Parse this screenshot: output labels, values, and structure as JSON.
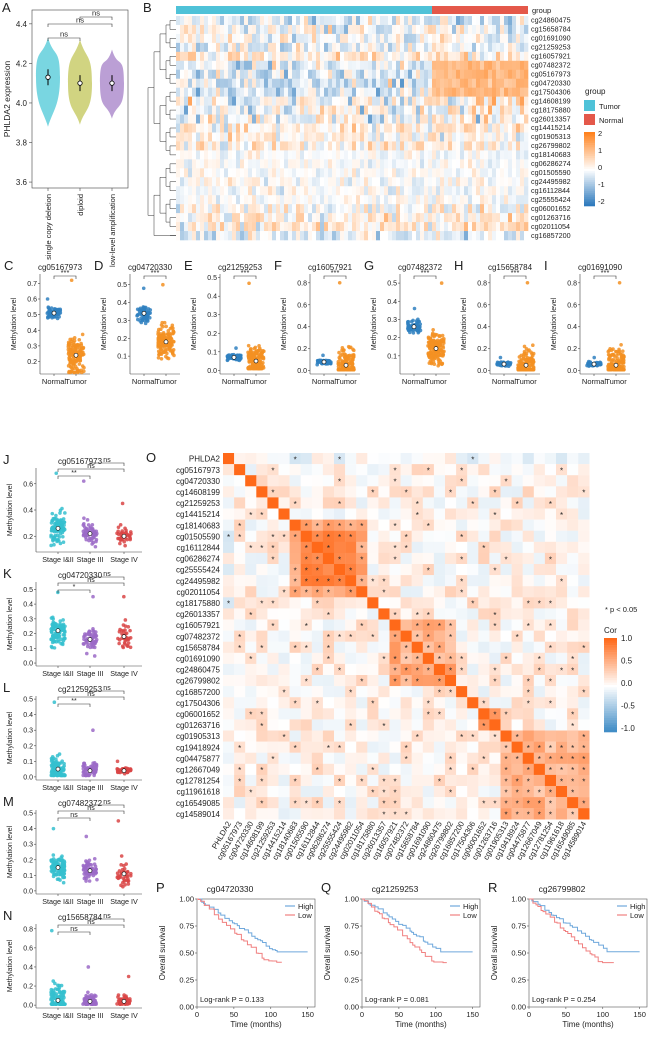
{
  "panels": {
    "A": {
      "letter": "A",
      "ylabel": "PHLDA2 expression",
      "yticks": [
        3.6,
        3.8,
        4.0,
        4.2,
        4.4
      ],
      "ylim": [
        3.57,
        4.47
      ],
      "groups": [
        {
          "name": "single copy deletion",
          "color": "#72d4df",
          "mean": 4.13,
          "lo": 3.88,
          "hi": 4.33
        },
        {
          "name": "diploid",
          "color": "#cfd27a",
          "mean": 4.1,
          "lo": 3.89,
          "hi": 4.32
        },
        {
          "name": "low-level amplification",
          "color": "#b79ad3",
          "mean": 4.1,
          "lo": 3.92,
          "hi": 4.27
        }
      ],
      "sig": [
        "ns",
        "ns",
        "ns"
      ]
    },
    "B": {
      "letter": "B",
      "group_label": "group",
      "legend_title": "group",
      "legend_items": [
        {
          "label": "Tumor",
          "color": "#4fc2d8"
        },
        {
          "label": "Normal",
          "color": "#e4584a"
        }
      ],
      "colorbar_ticks": [
        "2",
        "1",
        "0",
        "-1",
        "-2"
      ],
      "rows": [
        "cg24860475",
        "cg15658784",
        "cg01691090",
        "cg21259253",
        "cg16057921",
        "cg07482372",
        "cg05167973",
        "cg04720330",
        "cg17504306",
        "cg14608199",
        "cg18175880",
        "cg26013357",
        "cg14415214",
        "cg01905313",
        "cg26799802",
        "cg18140683",
        "cg06286274",
        "cg01505590",
        "cg24495982",
        "cg16112844",
        "cg25555424",
        "cg06001652",
        "cg01263716",
        "cg02011054",
        "cg16857200"
      ]
    },
    "C_I": [
      {
        "letter": "C",
        "title": "cg05167973",
        "ylabel": "Methylation level",
        "yticks": [
          0.2,
          0.3,
          0.4,
          0.5,
          0.6,
          0.7
        ],
        "ylim": [
          0.12,
          0.76
        ],
        "normal_median": 0.51,
        "tumor_median": 0.24,
        "normal_range": [
          0.43,
          0.6
        ],
        "tumor_range": [
          0.13,
          0.72
        ],
        "sig": "***",
        "categories": [
          "Normal",
          "Tumor"
        ]
      },
      {
        "letter": "D",
        "title": "cg04720330",
        "ylabel": "Methylation level",
        "yticks": [
          0.1,
          0.2,
          0.3,
          0.4,
          0.5
        ],
        "ylim": [
          0.0,
          0.56
        ],
        "normal_median": 0.34,
        "tumor_median": 0.18,
        "normal_range": [
          0.22,
          0.48
        ],
        "tumor_range": [
          0.03,
          0.5
        ],
        "sig": "***",
        "categories": [
          "Normal",
          "Tumor"
        ]
      },
      {
        "letter": "E",
        "title": "cg21259253",
        "ylabel": "Methylation level",
        "yticks": [
          0.0,
          0.1,
          0.2,
          0.3,
          0.4,
          0.5
        ],
        "ylim": [
          -0.02,
          0.52
        ],
        "normal_median": 0.07,
        "tumor_median": 0.05,
        "normal_range": [
          0.03,
          0.12
        ],
        "tumor_range": [
          0.01,
          0.47
        ],
        "sig": "***",
        "categories": [
          "Normal",
          "Tumor"
        ]
      },
      {
        "letter": "F",
        "title": "cg16057921",
        "ylabel": "Methylation level",
        "yticks": [
          0.0,
          0.2,
          0.4,
          0.6,
          0.8
        ],
        "ylim": [
          -0.03,
          0.88
        ],
        "normal_median": 0.08,
        "tumor_median": 0.05,
        "normal_range": [
          0.04,
          0.14
        ],
        "tumor_range": [
          0.01,
          0.8
        ],
        "sig": "***",
        "categories": [
          "Normal",
          "Tumor"
        ]
      },
      {
        "letter": "G",
        "title": "cg07482372",
        "ylabel": "Methylation level",
        "yticks": [
          0.1,
          0.2,
          0.3,
          0.4,
          0.5
        ],
        "ylim": [
          0.0,
          0.55
        ],
        "normal_median": 0.26,
        "tumor_median": 0.14,
        "normal_range": [
          0.18,
          0.36
        ],
        "tumor_range": [
          0.02,
          0.5
        ],
        "sig": "***",
        "categories": [
          "Normal",
          "Tumor"
        ]
      },
      {
        "letter": "H",
        "title": "cg15658784",
        "ylabel": "Methylation level",
        "yticks": [
          0.0,
          0.2,
          0.4,
          0.6,
          0.8
        ],
        "ylim": [
          -0.03,
          0.88
        ],
        "normal_median": 0.06,
        "tumor_median": 0.05,
        "normal_range": [
          0.03,
          0.12
        ],
        "tumor_range": [
          0.01,
          0.8
        ],
        "sig": "***",
        "categories": [
          "Normal",
          "Tumor"
        ]
      },
      {
        "letter": "I",
        "title": "cg01691090",
        "ylabel": "Methylation level",
        "yticks": [
          0.0,
          0.2,
          0.4,
          0.6,
          0.8
        ],
        "ylim": [
          -0.03,
          0.88
        ],
        "normal_median": 0.06,
        "tumor_median": 0.05,
        "normal_range": [
          0.03,
          0.12
        ],
        "tumor_range": [
          0.01,
          0.8
        ],
        "sig": "***",
        "categories": [
          "Normal",
          "Tumor"
        ]
      }
    ],
    "J_N": [
      {
        "letter": "J",
        "title": "cg05167973",
        "ylabel": "Methylation level",
        "yticks": [
          0.2,
          0.4,
          0.6
        ],
        "ylim": [
          0.08,
          0.72
        ],
        "medians": [
          0.26,
          0.22,
          0.2
        ],
        "ranges": [
          [
            0.12,
            0.68
          ],
          [
            0.12,
            0.62
          ],
          [
            0.12,
            0.45
          ]
        ],
        "sig": [
          "**",
          "ns",
          "ns"
        ]
      },
      {
        "letter": "K",
        "title": "cg04720330",
        "ylabel": "Methylation level",
        "yticks": [
          0.0,
          0.1,
          0.2,
          0.3,
          0.4,
          0.5
        ],
        "ylim": [
          -0.02,
          0.55
        ],
        "medians": [
          0.22,
          0.16,
          0.18
        ],
        "ranges": [
          [
            0.03,
            0.48
          ],
          [
            0.03,
            0.45
          ],
          [
            0.03,
            0.45
          ]
        ],
        "sig": [
          "*",
          "ns",
          "ns"
        ]
      },
      {
        "letter": "L",
        "title": "cg21259253",
        "ylabel": "Methylation level",
        "yticks": [
          0.0,
          0.1,
          0.2,
          0.3,
          0.4,
          0.5
        ],
        "ylim": [
          -0.02,
          0.52
        ],
        "medians": [
          0.05,
          0.04,
          0.04
        ],
        "ranges": [
          [
            0.01,
            0.48
          ],
          [
            0.01,
            0.3
          ],
          [
            0.01,
            0.1
          ]
        ],
        "sig": [
          "**",
          "ns",
          "ns"
        ]
      },
      {
        "letter": "M",
        "title": "cg07482372",
        "ylabel": "Methylation level",
        "yticks": [
          0.0,
          0.1,
          0.2,
          0.3,
          0.4,
          0.5
        ],
        "ylim": [
          -0.02,
          0.52
        ],
        "medians": [
          0.15,
          0.13,
          0.11
        ],
        "ranges": [
          [
            0.02,
            0.4
          ],
          [
            0.02,
            0.35
          ],
          [
            0.02,
            0.45
          ]
        ],
        "sig": [
          "ns",
          "ns",
          "ns"
        ]
      },
      {
        "letter": "N",
        "title": "cg15658784",
        "ylabel": "Methylation level",
        "yticks": [
          0.0,
          0.2,
          0.4,
          0.6,
          0.8
        ],
        "ylim": [
          -0.03,
          0.85
        ],
        "medians": [
          0.05,
          0.04,
          0.04
        ],
        "ranges": [
          [
            0.01,
            0.78
          ],
          [
            0.01,
            0.4
          ],
          [
            0.01,
            0.3
          ]
        ],
        "sig": [
          "ns",
          "ns",
          "ns"
        ]
      }
    ],
    "stage_categories": [
      "Stage I&II",
      "Stage III",
      "Stage IV"
    ],
    "stage_colors": [
      "#35bfcf",
      "#9b6ac7",
      "#d94545"
    ],
    "O": {
      "letter": "O",
      "labels": [
        "PHLDA2",
        "cg05167973",
        "cg04720330",
        "cg14608199",
        "cg21259253",
        "cg14415214",
        "cg18140683",
        "cg01505590",
        "cg16112844",
        "cg06286274",
        "cg25555424",
        "cg24495982",
        "cg02011054",
        "cg18175880",
        "cg26013357",
        "cg16057921",
        "cg07482372",
        "cg15658784",
        "cg01691090",
        "cg24860475",
        "cg26799802",
        "cg16857200",
        "cg17504306",
        "cg06001652",
        "cg01263716",
        "cg01905313",
        "cg19418924",
        "cg04475877",
        "cg12667049",
        "cg12781254",
        "cg11961618",
        "cg16549085",
        "cg14589014"
      ],
      "legend_note": "* p < 0.05",
      "legend_title": "Cor",
      "legend_ticks": [
        "1.0",
        "0.5",
        "0.0",
        "-0.5",
        "-1.0"
      ]
    },
    "survival": [
      {
        "letter": "P",
        "title": "cg04720330",
        "pvalue_label": "Log-rank",
        "pvalue": "P = 0.133"
      },
      {
        "letter": "Q",
        "title": "cg21259253",
        "pvalue_label": "Log-rank",
        "pvalue": "P = 0.081"
      },
      {
        "letter": "R",
        "title": "cg26799802",
        "pvalue_label": "Log-rank",
        "pvalue": "P = 0.254"
      }
    ],
    "survival_common": {
      "ylabel": "Overall survival",
      "xlabel": "Time (months)",
      "xticks": [
        0,
        50,
        100,
        150
      ],
      "yticks": [
        "0.00",
        "0.25",
        "0.50",
        "0.75",
        "1.00"
      ],
      "legend": [
        {
          "label": "High",
          "color": "#6fa8dc"
        },
        {
          "label": "Low",
          "color": "#f08080"
        }
      ]
    }
  },
  "chart_data": [
    {
      "type": "violin",
      "title": "",
      "ylabel": "PHLDA2 expression",
      "categories": [
        "single copy deletion",
        "diploid",
        "low-level amplification"
      ],
      "values": [
        4.13,
        4.1,
        4.1
      ],
      "ylim": [
        3.57,
        4.47
      ]
    },
    {
      "type": "heatmap",
      "title": "",
      "rows": [
        "cg24860475",
        "cg15658784",
        "cg01691090",
        "cg21259253",
        "cg16057921",
        "cg07482372",
        "cg05167973",
        "cg04720330",
        "cg17504306",
        "cg14608199",
        "cg18175880",
        "cg26013357",
        "cg14415214",
        "cg01905313",
        "cg26799802",
        "cg18140683",
        "cg06286274",
        "cg01505590",
        "cg24495982",
        "cg16112844",
        "cg25555424",
        "cg06001652",
        "cg01263716",
        "cg02011054",
        "cg16857200"
      ],
      "columns": [
        "Tumor",
        "Normal"
      ],
      "value_range": [
        -2,
        2
      ]
    },
    {
      "type": "scatter",
      "title": "cg05167973",
      "categories": [
        "Normal",
        "Tumor"
      ],
      "values": [
        0.51,
        0.24
      ]
    },
    {
      "type": "scatter",
      "title": "cg04720330",
      "categories": [
        "Normal",
        "Tumor"
      ],
      "values": [
        0.34,
        0.18
      ]
    },
    {
      "type": "scatter",
      "title": "cg21259253",
      "categories": [
        "Normal",
        "Tumor"
      ],
      "values": [
        0.07,
        0.05
      ]
    },
    {
      "type": "scatter",
      "title": "cg16057921",
      "categories": [
        "Normal",
        "Tumor"
      ],
      "values": [
        0.08,
        0.05
      ]
    },
    {
      "type": "scatter",
      "title": "cg07482372",
      "categories": [
        "Normal",
        "Tumor"
      ],
      "values": [
        0.26,
        0.14
      ]
    },
    {
      "type": "scatter",
      "title": "cg15658784",
      "categories": [
        "Normal",
        "Tumor"
      ],
      "values": [
        0.06,
        0.05
      ]
    },
    {
      "type": "scatter",
      "title": "cg01691090",
      "categories": [
        "Normal",
        "Tumor"
      ],
      "values": [
        0.06,
        0.05
      ]
    },
    {
      "type": "heatmap",
      "title": "",
      "legend_title": "Cor",
      "value_range": [
        -1.0,
        1.0
      ]
    },
    {
      "type": "line",
      "title": "cg04720330",
      "xlabel": "Time (months)",
      "ylabel": "Overall survival",
      "series": [
        {
          "name": "High"
        },
        {
          "name": "Low"
        }
      ]
    },
    {
      "type": "line",
      "title": "cg21259253",
      "xlabel": "Time (months)",
      "ylabel": "Overall survival",
      "series": [
        {
          "name": "High"
        },
        {
          "name": "Low"
        }
      ]
    },
    {
      "type": "line",
      "title": "cg26799802",
      "xlabel": "Time (months)",
      "ylabel": "Overall survival",
      "series": [
        {
          "name": "High"
        },
        {
          "name": "Low"
        }
      ]
    }
  ]
}
